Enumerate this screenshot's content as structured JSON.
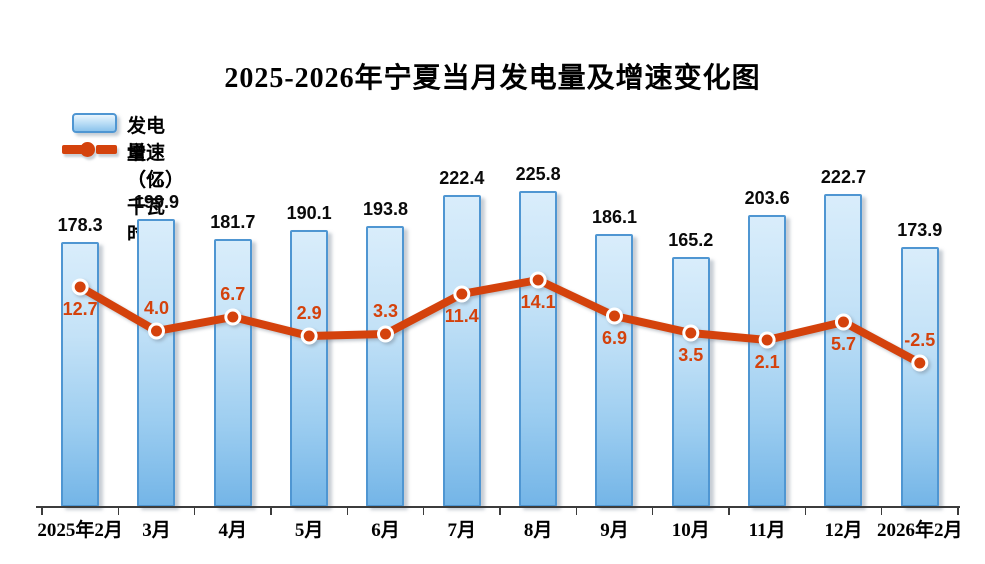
{
  "title": "2025-2026年宁夏当月发电量及增速变化图",
  "legend": {
    "bars_label": "发电量（亿千瓦时）",
    "line_label": "增速（%）"
  },
  "colors": {
    "line": "#d4420c",
    "bar_border": "#4f96d2",
    "bar_fill_top": "#d9edfb",
    "bar_fill_bottom": "#74b5e7",
    "marker_ring": "#ffffff",
    "text": "#000000",
    "axis": "#3c3c3c"
  },
  "chart_data": {
    "type": "bar+line",
    "title": "2025-2026年宁夏当月发电量及增速变化图",
    "categories": [
      "2025年2月",
      "3月",
      "4月",
      "5月",
      "6月",
      "7月",
      "8月",
      "9月",
      "10月",
      "11月",
      "12月",
      "2026年2月"
    ],
    "series": [
      {
        "name": "发电量（亿千瓦时）",
        "type": "bar",
        "values": [
          178.3,
          199.9,
          181.7,
          190.1,
          193.8,
          222.4,
          225.8,
          186.1,
          165.2,
          203.6,
          222.7,
          173.9
        ]
      },
      {
        "name": "增速（%）",
        "type": "line",
        "values": [
          12.7,
          4.0,
          6.7,
          2.9,
          3.3,
          11.4,
          14.1,
          6.9,
          3.5,
          2.1,
          5.7,
          -2.5
        ],
        "label_positions": [
          "below",
          "above",
          "above",
          "above",
          "above",
          "below",
          "below",
          "below",
          "below",
          "below",
          "below",
          "above"
        ]
      }
    ],
    "layout_hints": {
      "gridlines": false,
      "y_axis_visible": false,
      "x_baseline_visible": true,
      "legend_position": "top-left",
      "data_labels": "all points labeled, one decimal"
    }
  }
}
